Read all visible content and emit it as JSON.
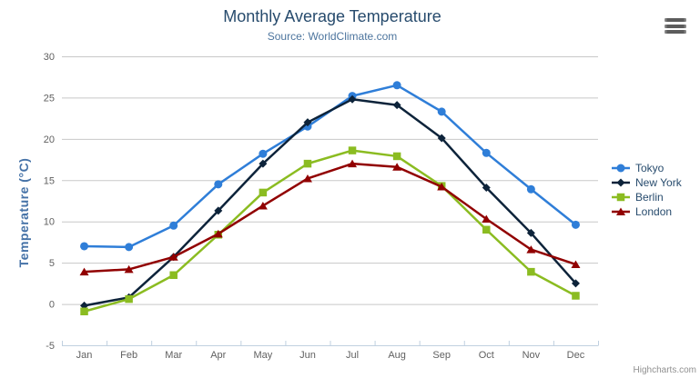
{
  "title": "Monthly Average Temperature",
  "subtitle": "Source: WorldClimate.com",
  "credit": "Highcharts.com",
  "export_menu": {
    "icon": "hamburger-menu-icon"
  },
  "colors": {
    "title_text": "#274b6d",
    "subtitle_text": "#4d759e",
    "axis_title_text": "#4572a7",
    "axis_label_text": "#606060",
    "legend_text": "#274b6d",
    "gridline": "#c8c8c8",
    "axis_line": "#c0d0e0",
    "credit_text": "#909090",
    "menu_icon": "#5c5c5c"
  },
  "chart_data": {
    "type": "line",
    "title": "Monthly Average Temperature",
    "subtitle": "Source: WorldClimate.com",
    "xlabel": "",
    "ylabel": "Temperature (°C)",
    "ylim": [
      -5,
      30
    ],
    "yticks": [
      30,
      25,
      20,
      15,
      10,
      5,
      0,
      -5
    ],
    "grid": true,
    "legend_position": "right",
    "categories": [
      "Jan",
      "Feb",
      "Mar",
      "Apr",
      "May",
      "Jun",
      "Jul",
      "Aug",
      "Sep",
      "Oct",
      "Nov",
      "Dec"
    ],
    "series": [
      {
        "name": "Tokyo",
        "color": "#2f7ed8",
        "marker": "circle",
        "values": [
          7.0,
          6.9,
          9.5,
          14.5,
          18.2,
          21.5,
          25.2,
          26.5,
          23.3,
          18.3,
          13.9,
          9.6
        ]
      },
      {
        "name": "New York",
        "color": "#0d233a",
        "marker": "diamond",
        "values": [
          -0.2,
          0.8,
          5.7,
          11.3,
          17.0,
          22.0,
          24.8,
          24.1,
          20.1,
          14.1,
          8.6,
          2.5
        ]
      },
      {
        "name": "Berlin",
        "color": "#8bbc21",
        "marker": "square",
        "values": [
          -0.9,
          0.6,
          3.5,
          8.4,
          13.5,
          17.0,
          18.6,
          17.9,
          14.3,
          9.0,
          3.9,
          1.0
        ]
      },
      {
        "name": "London",
        "color": "#910000",
        "marker": "triangle",
        "values": [
          3.9,
          4.2,
          5.7,
          8.5,
          11.9,
          15.2,
          17.0,
          16.6,
          14.2,
          10.3,
          6.6,
          4.8
        ]
      }
    ]
  }
}
